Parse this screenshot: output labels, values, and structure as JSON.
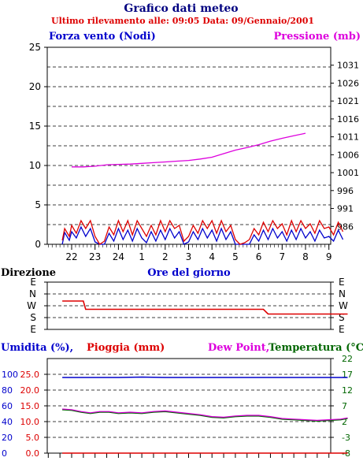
{
  "header": {
    "title": "Grafico dati meteo",
    "subtitle": "Ultimo rilevamento alle: 09:05  Data: 09/Gennaio/2001"
  },
  "colors": {
    "wind": "#0000cc",
    "gust": "#dd0000",
    "pressure": "#dd00dd",
    "direction": "#dd0000",
    "humidity": "#0000cc",
    "rain": "#dd0000",
    "dewpoint": "#dd00dd",
    "temperature": "#006600",
    "grid": "#000000",
    "tick_left_blue": "#0000cc",
    "tick_right_green": "#006600"
  },
  "chart_data": [
    {
      "type": "line",
      "id": "wind-pressure",
      "left_label": "Forza vento (Nodi)",
      "right_label": "Pressione (mb)",
      "x_label": "Ore del giorno",
      "x_ticks": [
        "22",
        "23",
        "24",
        "1",
        "2",
        "3",
        "4",
        "5",
        "6",
        "7",
        "8",
        "9"
      ],
      "y_left": {
        "min": 0,
        "max": 25,
        "ticks": [
          0,
          5,
          10,
          15,
          20,
          25
        ]
      },
      "y_right": {
        "min": 981,
        "max": 1036,
        "ticks": [
          986,
          991,
          996,
          1001,
          1006,
          1011,
          1016,
          1021,
          1026,
          1031
        ]
      },
      "series": [
        {
          "key": "pressure",
          "axis": "right",
          "points": [
            [
              0,
              1002.6
            ],
            [
              0.5,
              1002.6
            ],
            [
              1,
              1002.8
            ],
            [
              1.5,
              1003.2
            ],
            [
              2,
              1003.3
            ],
            [
              2.5,
              1003.4
            ],
            [
              3,
              1003.6
            ],
            [
              3.5,
              1003.8
            ],
            [
              4,
              1004.0
            ],
            [
              4.5,
              1004.2
            ],
            [
              5,
              1004.4
            ],
            [
              5.5,
              1004.8
            ],
            [
              6,
              1005.3
            ],
            [
              6.5,
              1006.3
            ],
            [
              7,
              1007.3
            ],
            [
              7.5,
              1008.0
            ],
            [
              8,
              1008.8
            ],
            [
              8.5,
              1009.8
            ],
            [
              9,
              1010.6
            ],
            [
              9.5,
              1011.3
            ],
            [
              10,
              1012.0
            ]
          ]
        },
        {
          "key": "wind",
          "axis": "left",
          "points": [
            [
              -0.4,
              0
            ],
            [
              -0.3,
              1.5
            ],
            [
              -0.1,
              0.5
            ],
            [
              0,
              1.6
            ],
            [
              0.2,
              0.8
            ],
            [
              0.4,
              2.2
            ],
            [
              0.6,
              1.0
            ],
            [
              0.8,
              2.0
            ],
            [
              1.0,
              0.3
            ],
            [
              1.2,
              0
            ],
            [
              1.4,
              0
            ],
            [
              1.6,
              1.4
            ],
            [
              1.8,
              0.4
            ],
            [
              2.0,
              2.0
            ],
            [
              2.2,
              0.6
            ],
            [
              2.4,
              1.8
            ],
            [
              2.6,
              0.4
            ],
            [
              2.8,
              2.0
            ],
            [
              3.0,
              0.8
            ],
            [
              3.2,
              0.2
            ],
            [
              3.4,
              1.6
            ],
            [
              3.6,
              0.4
            ],
            [
              3.8,
              1.8
            ],
            [
              4.0,
              0.6
            ],
            [
              4.2,
              2.0
            ],
            [
              4.4,
              0.8
            ],
            [
              4.6,
              1.6
            ],
            [
              4.8,
              0
            ],
            [
              5.0,
              0.3
            ],
            [
              5.2,
              1.6
            ],
            [
              5.4,
              0.6
            ],
            [
              5.6,
              2.0
            ],
            [
              5.8,
              0.8
            ],
            [
              6.0,
              1.8
            ],
            [
              6.2,
              0.4
            ],
            [
              6.4,
              2.0
            ],
            [
              6.6,
              0.6
            ],
            [
              6.8,
              1.6
            ],
            [
              7.0,
              0
            ],
            [
              7.2,
              0
            ],
            [
              7.4,
              0
            ],
            [
              7.6,
              0
            ],
            [
              7.8,
              1.2
            ],
            [
              8.0,
              0.4
            ],
            [
              8.2,
              1.8
            ],
            [
              8.4,
              0.6
            ],
            [
              8.6,
              2.0
            ],
            [
              8.8,
              0.8
            ],
            [
              9.0,
              1.6
            ],
            [
              9.2,
              0.4
            ],
            [
              9.4,
              1.8
            ],
            [
              9.6,
              0.6
            ],
            [
              9.8,
              2.0
            ],
            [
              10.0,
              0.8
            ],
            [
              10.2,
              1.6
            ],
            [
              10.4,
              0.4
            ],
            [
              10.6,
              1.8
            ],
            [
              10.8,
              0.8
            ],
            [
              11.0,
              1.0
            ],
            [
              11.2,
              0.4
            ],
            [
              11.4,
              1.8
            ],
            [
              11.6,
              0.6
            ]
          ]
        },
        {
          "key": "gust",
          "axis": "left",
          "points": [
            [
              -0.4,
              0.5
            ],
            [
              -0.3,
              2.0
            ],
            [
              -0.1,
              1.0
            ],
            [
              0,
              2.4
            ],
            [
              0.2,
              1.4
            ],
            [
              0.4,
              3.0
            ],
            [
              0.6,
              2.0
            ],
            [
              0.8,
              3.0
            ],
            [
              1.0,
              1.0
            ],
            [
              1.2,
              0
            ],
            [
              1.4,
              0.4
            ],
            [
              1.6,
              2.2
            ],
            [
              1.8,
              1.2
            ],
            [
              2.0,
              3.0
            ],
            [
              2.2,
              1.6
            ],
            [
              2.4,
              3.0
            ],
            [
              2.6,
              1.2
            ],
            [
              2.8,
              3.0
            ],
            [
              3.0,
              2.0
            ],
            [
              3.2,
              1.0
            ],
            [
              3.4,
              2.4
            ],
            [
              3.6,
              1.2
            ],
            [
              3.8,
              3.0
            ],
            [
              4.0,
              1.6
            ],
            [
              4.2,
              3.0
            ],
            [
              4.4,
              2.0
            ],
            [
              4.6,
              2.4
            ],
            [
              4.8,
              0.4
            ],
            [
              5.0,
              1.0
            ],
            [
              5.2,
              2.4
            ],
            [
              5.4,
              1.4
            ],
            [
              5.6,
              3.0
            ],
            [
              5.8,
              2.0
            ],
            [
              6.0,
              3.0
            ],
            [
              6.2,
              1.4
            ],
            [
              6.4,
              3.0
            ],
            [
              6.6,
              1.6
            ],
            [
              6.8,
              2.4
            ],
            [
              7.0,
              0.6
            ],
            [
              7.2,
              0
            ],
            [
              7.4,
              0.2
            ],
            [
              7.6,
              0.6
            ],
            [
              7.8,
              2.0
            ],
            [
              8.0,
              1.2
            ],
            [
              8.2,
              2.8
            ],
            [
              8.4,
              1.6
            ],
            [
              8.6,
              3.0
            ],
            [
              8.8,
              2.0
            ],
            [
              9.0,
              2.6
            ],
            [
              9.2,
              1.2
            ],
            [
              9.4,
              3.0
            ],
            [
              9.6,
              1.6
            ],
            [
              9.8,
              3.0
            ],
            [
              10.0,
              2.0
            ],
            [
              10.2,
              2.6
            ],
            [
              10.4,
              1.4
            ],
            [
              10.6,
              3.0
            ],
            [
              10.8,
              2.0
            ],
            [
              11.0,
              2.2
            ],
            [
              11.2,
              1.2
            ],
            [
              11.4,
              2.8
            ],
            [
              11.6,
              1.6
            ]
          ]
        }
      ]
    },
    {
      "type": "line",
      "id": "direction",
      "left_label": "Direzione",
      "y_categories": [
        "E",
        "N",
        "W",
        "S",
        "E"
      ],
      "series": [
        {
          "key": "direction",
          "points": [
            [
              -0.4,
              1.6
            ],
            [
              0.5,
              1.6
            ],
            [
              0.6,
              2.3
            ],
            [
              8.2,
              2.3
            ],
            [
              8.4,
              2.7
            ],
            [
              11.8,
              2.7
            ]
          ]
        }
      ]
    },
    {
      "type": "line",
      "id": "humidity-temp",
      "left_label": "Umidita (%),",
      "rain_label": "Pioggia (mm)",
      "dew_label": "Dew Point,",
      "temp_label": "Temperatura (°C)",
      "y_humidity": {
        "min": 0,
        "max": 120,
        "ticks": [
          0,
          20,
          40,
          60,
          80,
          100
        ]
      },
      "y_rain": {
        "min": 0,
        "max": 30,
        "ticks": [
          "0.0",
          "5.0",
          "10.0",
          "15.0",
          "20.0",
          "25.0"
        ]
      },
      "y_temp": {
        "min": -8,
        "max": 22,
        "ticks": [
          -8,
          -3,
          2,
          7,
          12,
          17,
          22
        ]
      },
      "series": [
        {
          "key": "humidity",
          "axis": "humidity",
          "points": [
            [
              -0.4,
              96
            ],
            [
              2,
              96
            ],
            [
              3,
              96.5
            ],
            [
              4,
              96
            ],
            [
              6,
              96
            ],
            [
              8,
              96
            ],
            [
              11.8,
              96
            ]
          ]
        },
        {
          "key": "rain",
          "axis": "rain",
          "points": [
            [
              -0.4,
              0
            ],
            [
              11.8,
              0
            ]
          ]
        },
        {
          "key": "temperature",
          "axis": "temp",
          "points": [
            [
              -0.4,
              5.8
            ],
            [
              0,
              5.6
            ],
            [
              0.4,
              5.0
            ],
            [
              0.8,
              4.6
            ],
            [
              1.2,
              5.0
            ],
            [
              1.6,
              5.0
            ],
            [
              2,
              4.6
            ],
            [
              2.5,
              4.8
            ],
            [
              3,
              4.6
            ],
            [
              3.5,
              5.0
            ],
            [
              4,
              5.2
            ],
            [
              4.5,
              4.8
            ],
            [
              5,
              4.4
            ],
            [
              5.5,
              4.0
            ],
            [
              6,
              3.4
            ],
            [
              6.5,
              3.2
            ],
            [
              7,
              3.6
            ],
            [
              7.5,
              3.8
            ],
            [
              8,
              3.8
            ],
            [
              8.5,
              3.4
            ],
            [
              9,
              2.8
            ],
            [
              9.5,
              2.6
            ],
            [
              10,
              2.4
            ],
            [
              10.5,
              2.2
            ],
            [
              11,
              2.4
            ],
            [
              11.5,
              2.6
            ],
            [
              11.8,
              3.0
            ]
          ]
        },
        {
          "key": "dewpoint",
          "axis": "temp",
          "points": [
            [
              -0.4,
              6.0
            ],
            [
              0,
              5.8
            ],
            [
              0.4,
              5.2
            ],
            [
              0.8,
              4.8
            ],
            [
              1.2,
              5.2
            ],
            [
              1.6,
              5.2
            ],
            [
              2,
              4.8
            ],
            [
              2.5,
              5.0
            ],
            [
              3,
              4.8
            ],
            [
              3.5,
              5.2
            ],
            [
              4,
              5.4
            ],
            [
              4.5,
              5.0
            ],
            [
              5,
              4.6
            ],
            [
              5.5,
              4.2
            ],
            [
              6,
              3.6
            ],
            [
              6.5,
              3.4
            ],
            [
              7,
              3.8
            ],
            [
              7.5,
              4.0
            ],
            [
              8,
              4.0
            ],
            [
              8.5,
              3.6
            ],
            [
              9,
              3.0
            ],
            [
              9.5,
              2.8
            ],
            [
              10,
              2.6
            ],
            [
              10.5,
              2.4
            ],
            [
              11,
              2.6
            ],
            [
              11.5,
              2.8
            ],
            [
              11.8,
              3.2
            ]
          ]
        }
      ]
    }
  ]
}
